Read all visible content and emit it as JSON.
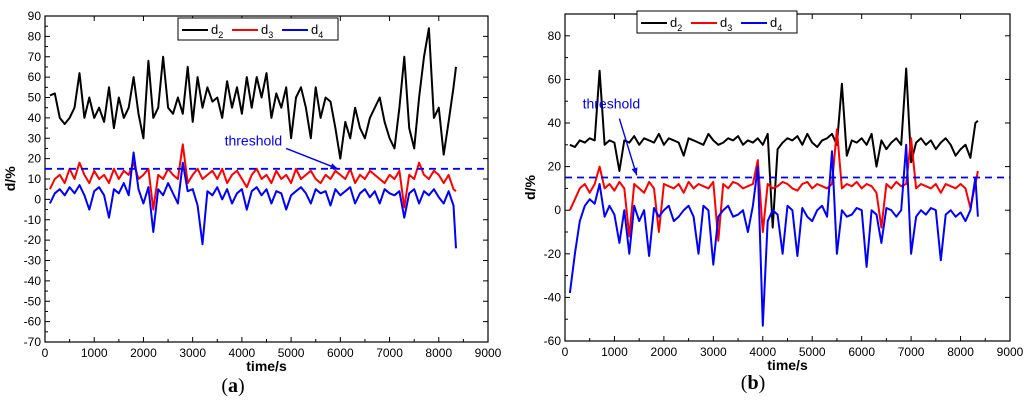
{
  "colors": {
    "d2": "#000000",
    "d3": "#ff0000",
    "d4": "#0000ff",
    "threshold": "#0000ff"
  },
  "chart_data": [
    {
      "type": "line",
      "panel_label": {
        "open": "(",
        "letter": "a",
        "close": ")"
      },
      "xlabel": "time/s",
      "ylabel": "d/%",
      "xlim": [
        0,
        9000
      ],
      "ylim": [
        -70,
        90
      ],
      "xticks": [
        "0",
        "1000",
        "2000",
        "3000",
        "4000",
        "5000",
        "6000",
        "7000",
        "8000",
        "9000"
      ],
      "yticks": [
        "-70",
        "-60",
        "-50",
        "-40",
        "-30",
        "-20",
        "-10",
        "0",
        "10",
        "20",
        "30",
        "40",
        "50",
        "60",
        "70",
        "80",
        "90"
      ],
      "threshold": {
        "value": 15,
        "label": "threshold",
        "arrow_from": [
          4900,
          25
        ],
        "arrow_to": [
          5950,
          15
        ]
      },
      "legend": [
        {
          "base": "d",
          "sub": "2"
        },
        {
          "base": "d",
          "sub": "3"
        },
        {
          "base": "d",
          "sub": "4"
        }
      ],
      "legend_position": "top-center",
      "x": [
        100,
        200,
        300,
        400,
        500,
        600,
        700,
        800,
        900,
        1000,
        1100,
        1200,
        1300,
        1400,
        1500,
        1600,
        1700,
        1800,
        1900,
        2000,
        2100,
        2200,
        2300,
        2400,
        2500,
        2600,
        2700,
        2800,
        2900,
        3000,
        3100,
        3200,
        3300,
        3400,
        3500,
        3600,
        3700,
        3800,
        3900,
        4000,
        4100,
        4200,
        4300,
        4400,
        4500,
        4600,
        4700,
        4800,
        4900,
        5000,
        5100,
        5200,
        5300,
        5400,
        5500,
        5600,
        5700,
        5800,
        5900,
        6000,
        6100,
        6200,
        6300,
        6400,
        6500,
        6600,
        6700,
        6800,
        6900,
        7000,
        7100,
        7200,
        7300,
        7400,
        7500,
        7600,
        7700,
        7800,
        7900,
        8000,
        8100,
        8200,
        8300,
        8350
      ],
      "series": [
        {
          "name": "d2",
          "values": [
            51,
            52,
            40,
            37,
            40,
            45,
            62,
            40,
            50,
            40,
            45,
            38,
            55,
            35,
            50,
            40,
            45,
            60,
            42,
            30,
            68,
            40,
            45,
            70,
            45,
            42,
            50,
            42,
            65,
            38,
            60,
            45,
            55,
            48,
            50,
            40,
            58,
            45,
            55,
            42,
            60,
            45,
            60,
            50,
            62,
            40,
            52,
            45,
            55,
            30,
            50,
            55,
            45,
            30,
            55,
            40,
            50,
            48,
            35,
            20,
            38,
            30,
            45,
            35,
            30,
            40,
            45,
            50,
            38,
            30,
            25,
            45,
            70,
            35,
            25,
            50,
            70,
            84,
            40,
            45,
            22,
            38,
            55,
            65
          ]
        },
        {
          "name": "d3",
          "values": [
            5,
            10,
            12,
            8,
            15,
            10,
            18,
            12,
            8,
            14,
            10,
            12,
            8,
            15,
            10,
            14,
            12,
            18,
            10,
            12,
            15,
            -5,
            12,
            10,
            15,
            12,
            10,
            27,
            8,
            12,
            15,
            10,
            12,
            14,
            10,
            15,
            8,
            12,
            14,
            10,
            6,
            12,
            15,
            10,
            12,
            8,
            14,
            10,
            12,
            8,
            15,
            10,
            12,
            14,
            10,
            8,
            12,
            10,
            14,
            12,
            10,
            15,
            8,
            12,
            10,
            14,
            12,
            10,
            8,
            12,
            10,
            14,
            -4,
            12,
            10,
            18,
            12,
            10,
            14,
            12,
            8,
            12,
            5,
            4
          ]
        },
        {
          "name": "d4",
          "values": [
            -2,
            3,
            5,
            2,
            6,
            3,
            7,
            2,
            -5,
            4,
            6,
            2,
            -9,
            5,
            3,
            8,
            2,
            23,
            5,
            -2,
            6,
            -16,
            5,
            2,
            8,
            3,
            -2,
            18,
            4,
            5,
            -3,
            -22,
            4,
            2,
            6,
            0,
            5,
            -2,
            3,
            5,
            -5,
            4,
            6,
            2,
            5,
            -2,
            4,
            3,
            -5,
            2,
            4,
            6,
            3,
            -2,
            5,
            3,
            4,
            -3,
            5,
            2,
            4,
            6,
            -2,
            3,
            5,
            1,
            4,
            -2,
            5,
            3,
            2,
            4,
            -9,
            3,
            5,
            -2,
            4,
            2,
            5,
            1,
            -2,
            4,
            -3,
            -24
          ]
        }
      ]
    },
    {
      "type": "line",
      "panel_label": {
        "open": "(",
        "letter": "b",
        "close": ")"
      },
      "xlabel": "time/s",
      "ylabel": "d/%",
      "xlim": [
        0,
        9000
      ],
      "ylim": [
        -60,
        90
      ],
      "xticks": [
        "0",
        "1000",
        "2000",
        "3000",
        "4000",
        "5000",
        "6000",
        "7000",
        "8000",
        "9000"
      ],
      "yticks": [
        "-60",
        "-40",
        "-20",
        "0",
        "20",
        "40",
        "60",
        "80"
      ],
      "threshold": {
        "value": 15,
        "label": "threshold",
        "arrow_from": [
          1100,
          42
        ],
        "arrow_to": [
          1450,
          16
        ]
      },
      "legend": [
        {
          "base": "d",
          "sub": "2"
        },
        {
          "base": "d",
          "sub": "3"
        },
        {
          "base": "d",
          "sub": "4"
        }
      ],
      "legend_position": "top-left",
      "x": [
        100,
        200,
        300,
        400,
        500,
        600,
        700,
        800,
        900,
        1000,
        1100,
        1200,
        1300,
        1400,
        1500,
        1600,
        1700,
        1800,
        1900,
        2000,
        2100,
        2200,
        2300,
        2400,
        2500,
        2600,
        2700,
        2800,
        2900,
        3000,
        3100,
        3200,
        3300,
        3400,
        3500,
        3600,
        3700,
        3800,
        3900,
        4000,
        4100,
        4200,
        4300,
        4400,
        4500,
        4600,
        4700,
        4800,
        4900,
        5000,
        5100,
        5200,
        5300,
        5400,
        5500,
        5600,
        5700,
        5800,
        5900,
        6000,
        6100,
        6200,
        6300,
        6400,
        6500,
        6600,
        6700,
        6800,
        6900,
        7000,
        7100,
        7200,
        7300,
        7400,
        7500,
        7600,
        7700,
        7800,
        7900,
        8000,
        8100,
        8200,
        8300,
        8350
      ],
      "series": [
        {
          "name": "d2",
          "values": [
            30,
            29,
            32,
            31,
            33,
            32,
            64,
            30,
            32,
            31,
            18,
            32,
            31,
            34,
            30,
            33,
            32,
            31,
            35,
            30,
            33,
            32,
            31,
            25,
            33,
            32,
            31,
            30,
            35,
            32,
            30,
            31,
            33,
            32,
            34,
            30,
            32,
            31,
            33,
            30,
            35,
            -8,
            28,
            31,
            33,
            32,
            34,
            30,
            35,
            31,
            29,
            32,
            33,
            35,
            30,
            58,
            25,
            32,
            31,
            33,
            30,
            35,
            20,
            32,
            28,
            31,
            33,
            30,
            65,
            22,
            31,
            33,
            30,
            32,
            28,
            31,
            33,
            30,
            25,
            28,
            30,
            24,
            40,
            41
          ]
        },
        {
          "name": "d3",
          "values": [
            0,
            5,
            10,
            12,
            8,
            12,
            20,
            10,
            12,
            9,
            13,
            10,
            -12,
            12,
            10,
            8,
            13,
            10,
            -10,
            12,
            11,
            10,
            12,
            8,
            13,
            10,
            12,
            11,
            10,
            13,
            -14,
            12,
            10,
            13,
            12,
            10,
            11,
            12,
            23,
            -10,
            12,
            10,
            11,
            13,
            12,
            10,
            9,
            12,
            13,
            10,
            12,
            11,
            10,
            12,
            37,
            10,
            12,
            11,
            13,
            10,
            12,
            11,
            8,
            -8,
            12,
            10,
            13,
            11,
            12,
            33,
            10,
            12,
            11,
            10,
            12,
            8,
            12,
            11,
            10,
            12,
            10,
            1,
            12,
            18
          ]
        },
        {
          "name": "d4",
          "values": [
            -38,
            -20,
            -5,
            2,
            5,
            3,
            12,
            -3,
            2,
            -2,
            -15,
            0,
            -20,
            2,
            -5,
            0,
            -21,
            1,
            -3,
            0,
            2,
            -5,
            -3,
            0,
            2,
            -3,
            -20,
            2,
            0,
            -25,
            -3,
            0,
            2,
            -3,
            -2,
            0,
            -10,
            2,
            20,
            -53,
            -5,
            0,
            -2,
            -20,
            2,
            0,
            -21,
            1,
            -3,
            -5,
            0,
            2,
            -3,
            27,
            -20,
            0,
            -3,
            -2,
            1,
            0,
            -26,
            0,
            -2,
            -15,
            1,
            0,
            -3,
            0,
            30,
            -20,
            -3,
            0,
            -2,
            1,
            0,
            -23,
            -2,
            0,
            -3,
            -1,
            -5,
            0,
            15,
            -3
          ]
        }
      ]
    }
  ]
}
